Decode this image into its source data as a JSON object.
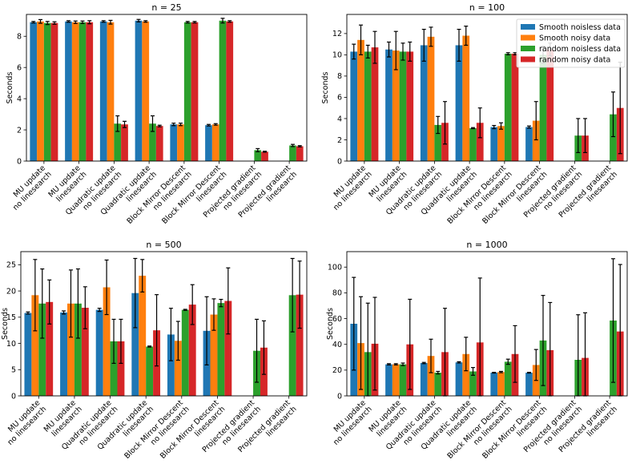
{
  "figure": {
    "ylabel": "Seconds"
  },
  "legend": {
    "entries": [
      "Smooth noisless data",
      "Smooth noisy data",
      "random noisless data",
      "random noisy data"
    ],
    "colors": [
      "#1f77b4",
      "#ff7f0e",
      "#2ca02c",
      "#d62728"
    ]
  },
  "chart_data": [
    {
      "type": "bar",
      "title": "n = 25",
      "ylabel": "Seconds",
      "ylim": [
        0,
        9.4
      ],
      "yticks": [
        0,
        2,
        4,
        6,
        8
      ],
      "categories": [
        "MU update\nno linesearch",
        "MU update\nlinesearch",
        "Quadratic update\nno linesearch",
        "Quadratic update\nlinesearch",
        "Block Mirror Descent\nno linesearch",
        "Block Mirror Descent\nlinesearch",
        "Projected gradient\nno linesearch",
        "Projected gradient\nlinesearch"
      ],
      "series": [
        {
          "name": "Smooth noisless data",
          "values": [
            8.9,
            8.95,
            8.95,
            9.0,
            2.35,
            2.3,
            null,
            null
          ],
          "errors": [
            0.05,
            0.05,
            0.05,
            0.08,
            0.08,
            0.05,
            null,
            null
          ]
        },
        {
          "name": "Smooth noisy data",
          "values": [
            8.95,
            8.9,
            8.9,
            8.95,
            2.35,
            2.35,
            null,
            null
          ],
          "errors": [
            0.12,
            0.08,
            0.12,
            0.05,
            0.08,
            0.05,
            null,
            null
          ]
        },
        {
          "name": "random noisless data",
          "values": [
            8.85,
            8.9,
            2.4,
            2.4,
            8.9,
            9.0,
            0.7,
            1.0
          ],
          "errors": [
            0.1,
            0.08,
            0.5,
            0.5,
            0.05,
            0.15,
            0.1,
            0.07
          ]
        },
        {
          "name": "random noisy data",
          "values": [
            8.85,
            8.9,
            2.35,
            2.25,
            8.9,
            8.95,
            0.6,
            0.95
          ],
          "errors": [
            0.08,
            0.1,
            0.2,
            0.05,
            0.05,
            0.05,
            0.03,
            0.04
          ]
        }
      ],
      "legend": "top-right",
      "grid": false
    },
    {
      "type": "bar",
      "title": "n = 100",
      "ylabel": "Seconds",
      "ylim": [
        0,
        13.8
      ],
      "yticks": [
        0,
        2,
        4,
        6,
        8,
        10,
        12
      ],
      "categories": [
        "MU update\nno linesearch",
        "MU update\nlinesearch",
        "Quadratic update\nno linesearch",
        "Quadratic update\nlinesearch",
        "Block Mirror Descent\nno linesearch",
        "Block Mirror Descent\nlinesearch",
        "Projected gradient\nno linesearch",
        "Projected gradient\nlinesearch"
      ],
      "series": [
        {
          "name": "Smooth noisless data",
          "values": [
            10.3,
            10.5,
            10.9,
            10.9,
            3.2,
            3.2,
            null,
            null
          ],
          "errors": [
            0.7,
            0.7,
            1.5,
            1.5,
            0.15,
            0.1,
            null,
            null
          ]
        },
        {
          "name": "Smooth noisy data",
          "values": [
            11.4,
            10.4,
            11.7,
            11.8,
            3.3,
            3.8,
            null,
            null
          ],
          "errors": [
            1.4,
            1.8,
            0.9,
            0.9,
            0.3,
            1.8,
            null,
            null
          ]
        },
        {
          "name": "random noisless data",
          "values": [
            10.3,
            10.3,
            3.4,
            3.1,
            10.1,
            10.0,
            2.4,
            4.4
          ],
          "errors": [
            0.6,
            0.8,
            0.8,
            0.05,
            0.1,
            0.8,
            1.6,
            2.1
          ]
        },
        {
          "name": "random noisy data",
          "values": [
            10.7,
            10.3,
            3.6,
            3.6,
            10.1,
            10.5,
            2.4,
            5.0
          ],
          "errors": [
            1.5,
            0.9,
            2.0,
            1.4,
            0.1,
            0.6,
            1.6,
            4.3
          ]
        }
      ],
      "legend": "top-right",
      "grid": false
    },
    {
      "type": "bar",
      "title": "n = 500",
      "ylabel": "Seconds",
      "ylim": [
        0,
        27.5
      ],
      "yticks": [
        0,
        5,
        10,
        15,
        20,
        25
      ],
      "categories": [
        "MU update\nno linesearch",
        "MU update\nlinesearch",
        "Quadratic update\nno linesearch",
        "Quadratic update\nlinesearch",
        "Block Mirror Descent\nno linesearch",
        "Block Mirror Descent\nlinesearch",
        "Projected gradient\nno linesearch",
        "Projected gradient\nlinesearch"
      ],
      "series": [
        {
          "name": "Smooth noisless data",
          "values": [
            15.8,
            15.9,
            16.4,
            19.6,
            11.7,
            12.4,
            null,
            null
          ],
          "errors": [
            0.2,
            0.3,
            0.3,
            6.6,
            5.0,
            6.5,
            null,
            null
          ]
        },
        {
          "name": "Smooth noisy data",
          "values": [
            19.2,
            17.6,
            20.7,
            22.9,
            10.5,
            15.5,
            null,
            null
          ],
          "errors": [
            6.8,
            6.4,
            5.2,
            3.1,
            3.7,
            3.0,
            null,
            null
          ]
        },
        {
          "name": "random noisless data",
          "values": [
            17.6,
            17.6,
            10.4,
            9.4,
            16.4,
            17.7,
            8.6,
            19.2
          ],
          "errors": [
            6.6,
            6.6,
            4.2,
            0.1,
            0.1,
            0.7,
            6.0,
            7.0
          ]
        },
        {
          "name": "random noisy data",
          "values": [
            17.9,
            16.8,
            10.4,
            12.5,
            17.4,
            18.1,
            9.2,
            19.3
          ],
          "errors": [
            4.2,
            4.0,
            4.2,
            6.8,
            3.8,
            6.3,
            5.1,
            6.4
          ]
        }
      ],
      "grid": false
    },
    {
      "type": "bar",
      "title": "n = 1000",
      "ylabel": "Seconds",
      "ylim": [
        0,
        112
      ],
      "yticks": [
        0,
        20,
        40,
        60,
        80,
        100
      ],
      "categories": [
        "MU update\nno linesearch",
        "MU update\nlinesearch",
        "Quadratic update\nno linesearch",
        "Quadratic update\nlinesearch",
        "Block Mirror Descent\nno linesearch",
        "Block Mirror Descent\nlinesearch",
        "Projected gradient\nno linesearch",
        "Projected gradient\nlinesearch"
      ],
      "series": [
        {
          "name": "Smooth noisless data",
          "values": [
            56,
            24.5,
            25.5,
            26,
            18,
            18,
            null,
            null
          ],
          "errors": [
            36,
            0.5,
            0.5,
            0.5,
            0.3,
            0.3,
            null,
            null
          ]
        },
        {
          "name": "Smooth noisy data",
          "values": [
            41,
            24.5,
            31,
            32.5,
            18.5,
            24,
            null,
            null
          ],
          "errors": [
            36,
            0.5,
            13,
            13,
            0.5,
            12,
            null,
            null
          ]
        },
        {
          "name": "random noisless data",
          "values": [
            34,
            24.5,
            18,
            19,
            26.5,
            43,
            28,
            58.5
          ],
          "errors": [
            38,
            1,
            1,
            3,
            2,
            35,
            35,
            48
          ]
        },
        {
          "name": "random noisy data",
          "values": [
            40.5,
            40,
            34,
            41.5,
            32.5,
            35.5,
            29.5,
            50
          ],
          "errors": [
            36,
            35,
            34,
            50,
            22,
            37,
            35,
            52
          ]
        }
      ],
      "grid": false
    }
  ]
}
